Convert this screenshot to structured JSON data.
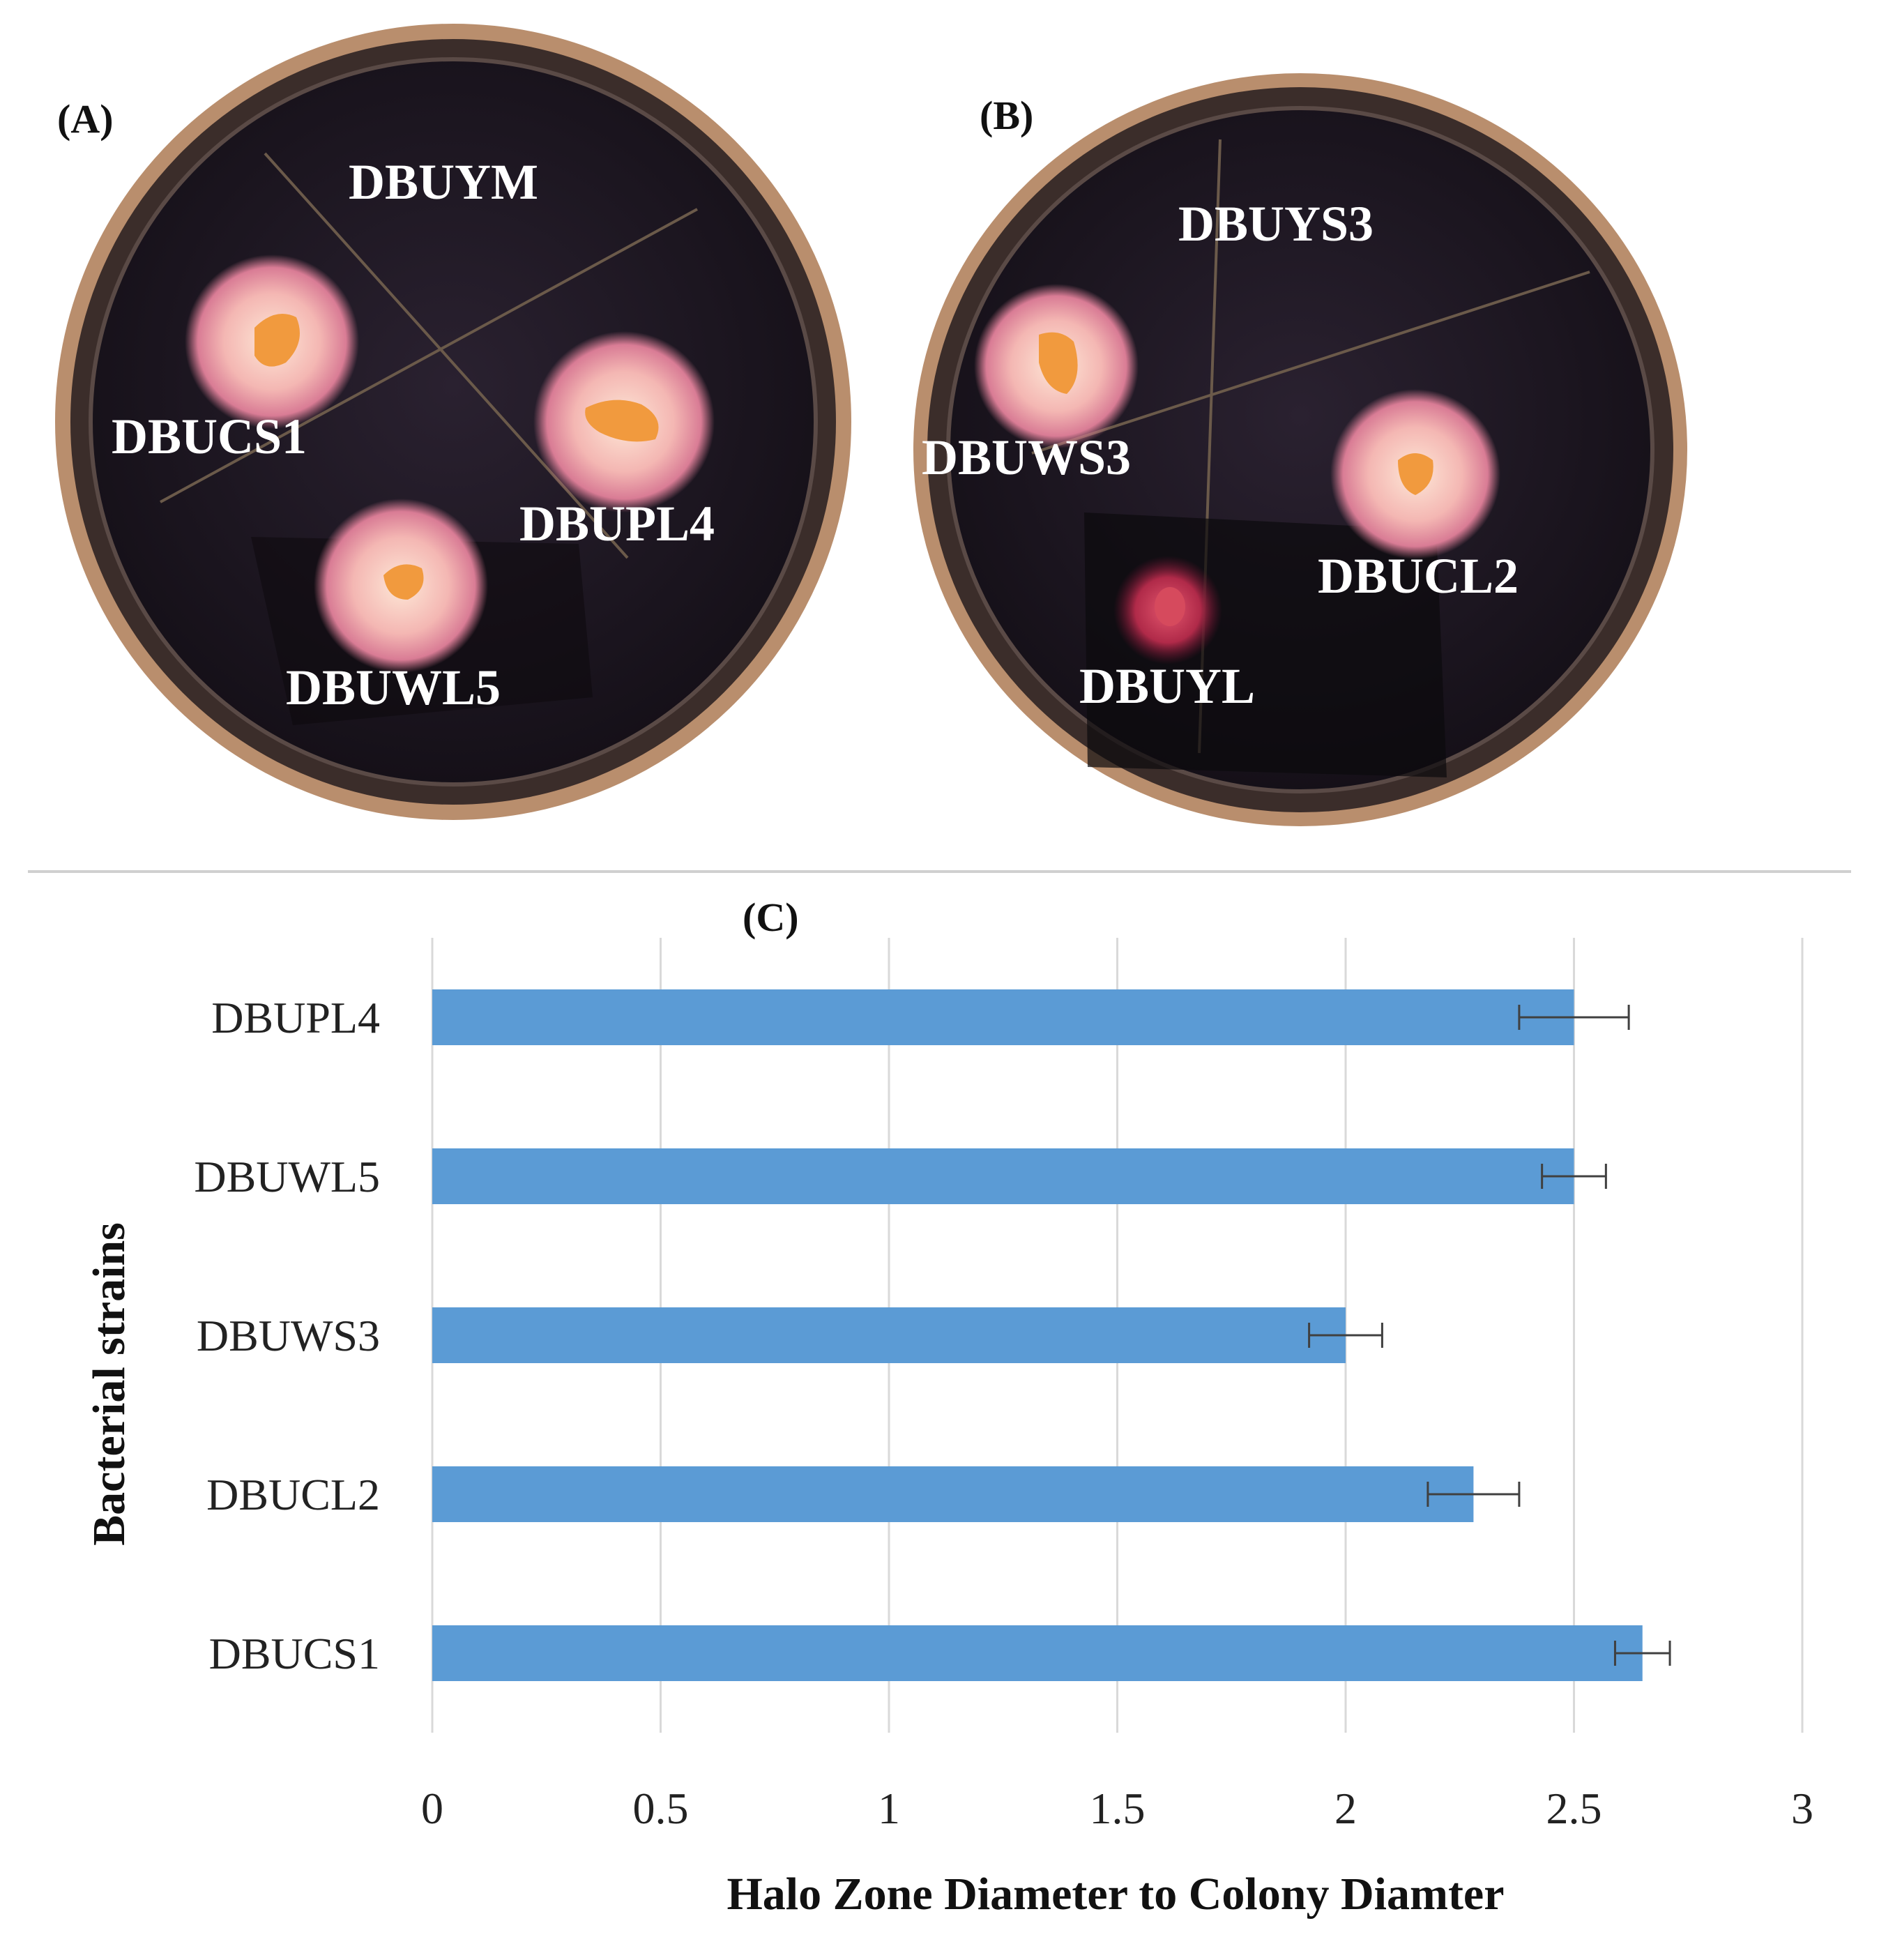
{
  "panels": {
    "a": {
      "label": "(A)",
      "strains": [
        "DBUYM",
        "DBUCS1",
        "DBUPL4",
        "DBUWL5"
      ]
    },
    "b": {
      "label": "(B)",
      "strains": [
        "DBUYS3",
        "DBUWS3",
        "DBUCL2",
        "DBUYL"
      ]
    },
    "c": {
      "label": "(C)"
    }
  },
  "colors": {
    "bar": "#5b9bd5",
    "plate_dark": "#1c1620",
    "plate_rim": "#b98e6d",
    "halo": "#f4c2bd",
    "colony": "#f19a3e",
    "grid": "#d9d9d9",
    "error_bar": "#404040"
  },
  "chart_data": {
    "type": "bar",
    "orientation": "horizontal",
    "title": "",
    "xlabel": "Halo Zone Diameter to Colony Diamter",
    "ylabel": "Bacterial strains",
    "xlim": [
      0,
      3
    ],
    "xticks": [
      "0",
      "0.5",
      "1",
      "1.5",
      "2",
      "2.5",
      "3"
    ],
    "grid": true,
    "categories": [
      "DBUPL4",
      "DBUWL5",
      "DBUWS3",
      "DBUCL2",
      "DBUCS1"
    ],
    "values": [
      2.5,
      2.5,
      2.0,
      2.28,
      2.65
    ],
    "errors": [
      0.12,
      0.07,
      0.08,
      0.1,
      0.06
    ]
  }
}
